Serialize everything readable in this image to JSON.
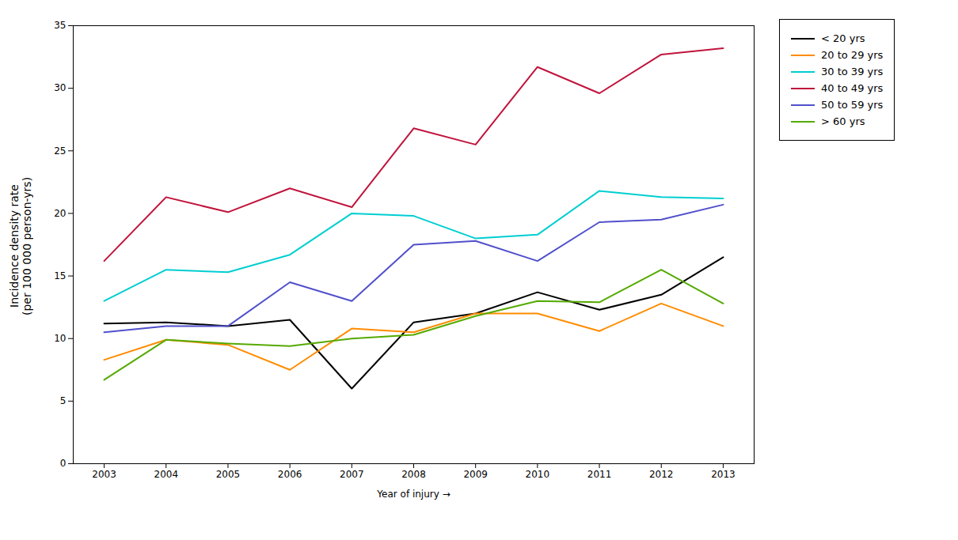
{
  "chart_data": {
    "type": "line",
    "x": [
      2003,
      2004,
      2005,
      2006,
      2007,
      2008,
      2009,
      2010,
      2011,
      2012,
      2013
    ],
    "xlabel": "Year of injury",
    "ylabel": "Incidence density rate\n(per 100 000 person-yrs)",
    "xlim": [
      2002.5,
      2013.5
    ],
    "xticks": [
      2003,
      2004,
      2005,
      2006,
      2007,
      2008,
      2009,
      2010,
      2011,
      2012,
      2013
    ],
    "ylim": [
      0,
      35
    ],
    "yticks": [
      0,
      5,
      10,
      15,
      20,
      25,
      30,
      35
    ],
    "grid": false,
    "legend": "right",
    "series": [
      {
        "name": "< 20 yrs",
        "color": "#000000",
        "values": [
          11.2,
          11.3,
          11.0,
          11.5,
          6.0,
          11.3,
          12.0,
          13.7,
          12.3,
          13.5,
          16.5
        ]
      },
      {
        "name": "20 to 29 yrs",
        "color": "#FF8C00",
        "values": [
          8.3,
          9.9,
          9.5,
          7.5,
          10.8,
          10.5,
          12.0,
          12.0,
          10.6,
          12.8,
          11.0
        ]
      },
      {
        "name": "30 to 39 yrs",
        "color": "#00CED1",
        "values": [
          13.0,
          15.5,
          15.3,
          16.7,
          20.0,
          19.8,
          18.0,
          18.3,
          21.8,
          21.3,
          21.2
        ]
      },
      {
        "name": "40 to 49 yrs",
        "color": "#C0143C",
        "values": [
          16.2,
          21.3,
          20.1,
          22.0,
          20.5,
          26.8,
          25.5,
          31.7,
          29.6,
          32.7,
          33.2
        ]
      },
      {
        "name": "50 to 59 yrs",
        "color": "#5050CC",
        "values": [
          10.5,
          11.0,
          11.0,
          14.5,
          13.0,
          17.5,
          17.8,
          16.2,
          19.3,
          19.5,
          20.7
        ]
      },
      {
        "name": "> 60 yrs",
        "color": "#55AA00",
        "values": [
          6.7,
          9.9,
          9.6,
          9.4,
          10.0,
          10.3,
          11.8,
          13.0,
          12.9,
          15.5,
          12.8
        ]
      }
    ]
  }
}
